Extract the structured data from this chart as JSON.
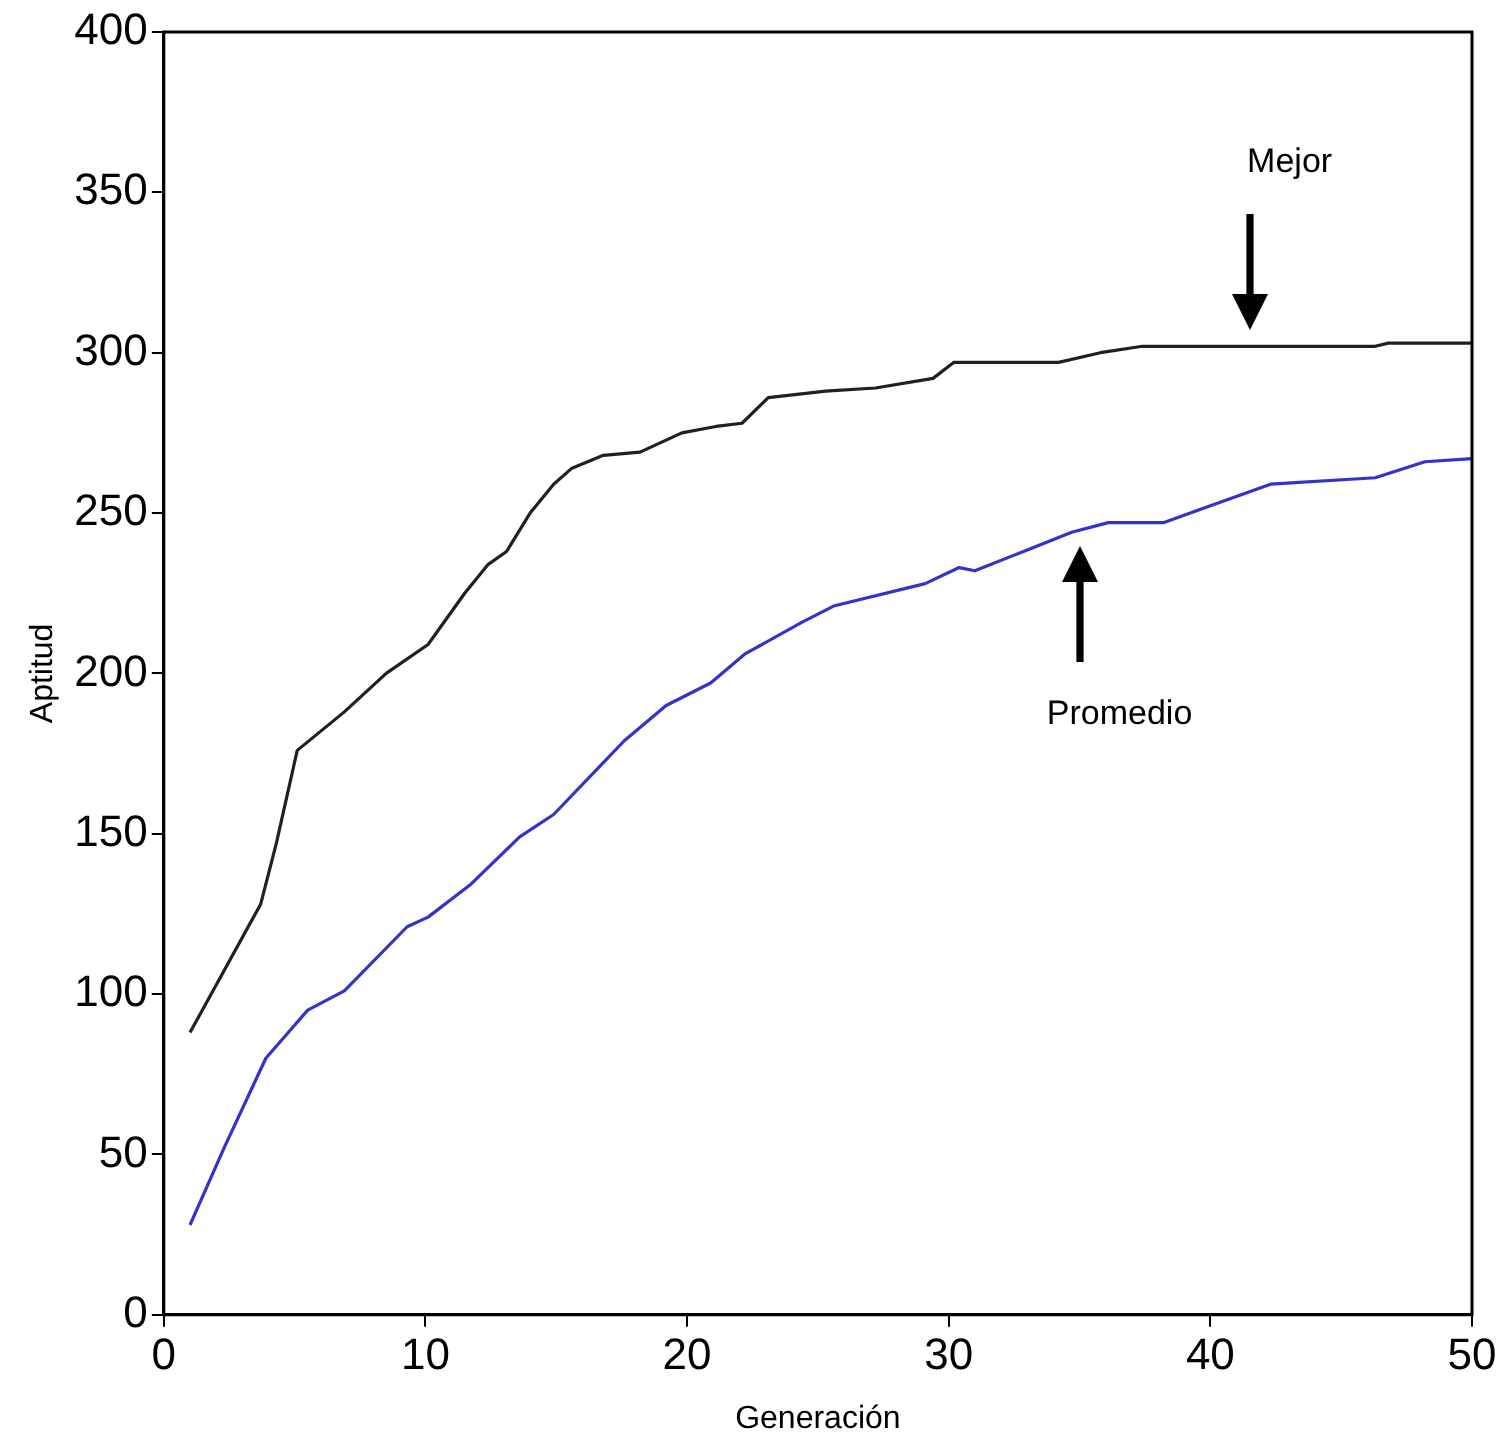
{
  "chart_data": {
    "type": "line",
    "xlabel": "Generación",
    "ylabel": "Aptitud",
    "xlim": [
      0,
      50
    ],
    "xticks": [
      0,
      10,
      20,
      30,
      40,
      50
    ],
    "ylim": [
      0,
      400
    ],
    "yticks": [
      0,
      50,
      100,
      150,
      200,
      250,
      300,
      350,
      400
    ],
    "grid": false,
    "legend": false,
    "marker": "none",
    "line_style": "solid",
    "series": [
      {
        "color": "#202020",
        "x": [
          1,
          3.7,
          4.3,
          5.1,
          6.9,
          8.5,
          10.1,
          11.5,
          12.4,
          13.1,
          14,
          14.9,
          15.6,
          16.8,
          18.2,
          19.8,
          21.1,
          22.1,
          23.1,
          25.3,
          27.2,
          29.4,
          30.2,
          34.2,
          35.8,
          37.4,
          46.3,
          46.8,
          50
        ],
        "values": [
          88,
          128,
          147,
          176,
          188,
          200,
          209,
          225,
          234,
          238,
          250,
          259,
          264,
          268,
          269,
          275,
          277,
          278,
          286,
          288,
          289,
          292,
          297,
          297,
          300,
          302,
          302,
          303,
          303
        ]
      },
      {
        "color": "#3333cc",
        "x": [
          1,
          2.3,
          3.9,
          5.5,
          6.9,
          9.3,
          10.1,
          11.7,
          13.6,
          14.9,
          17.6,
          19.2,
          20.9,
          22.2,
          24.4,
          25.6,
          29.1,
          30.4,
          31,
          34.7,
          36.1,
          38.2,
          42.3,
          46.3,
          48.2,
          50
        ],
        "values": [
          28,
          52,
          80,
          95,
          101,
          121,
          124,
          134,
          149,
          156,
          179,
          190,
          197,
          206,
          216,
          221,
          228,
          233,
          232,
          244,
          247,
          247,
          259,
          261,
          266,
          267
        ]
      }
    ],
    "annotations": [
      "Mejor",
      "Promedio"
    ]
  }
}
